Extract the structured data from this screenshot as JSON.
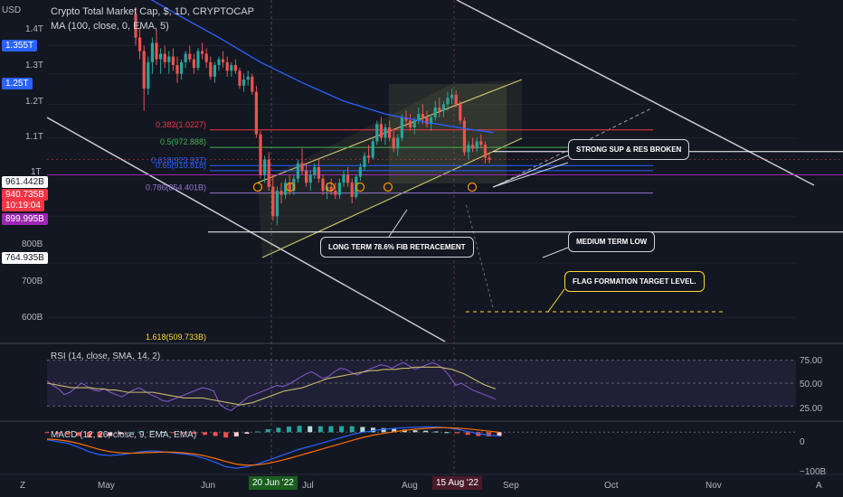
{
  "header": {
    "currency": "USD",
    "title": "Crypto Total Market Cap, $, 1D, CRYPTOCAP",
    "ma_label": "MA (100, close, 0, EMA, 5)"
  },
  "chart_data": {
    "type": "candlestick",
    "title": "Crypto Total Market Cap, $, 1D, CRYPTOCAP",
    "y_axis": {
      "scale": "log",
      "ticks": [
        "1.4T",
        "1.3T",
        "1.2T",
        "1.1T",
        "1T",
        "800B",
        "700B",
        "600B"
      ],
      "ylim": [
        560,
        1480
      ],
      "unit": "B"
    },
    "price_tags": [
      {
        "label": "1.355T",
        "value": 1355,
        "color": "#2962ff"
      },
      {
        "label": "1.25T",
        "value": 1250,
        "color": "#2962ff"
      },
      {
        "label": "961.442B",
        "value": 961.442,
        "color": "#ffffff"
      },
      {
        "label": "940.735B",
        "value": 940.735,
        "color": "#f23645",
        "extra": "10:19:04"
      },
      {
        "label": "899.995B",
        "value": 899.995,
        "color": "#9c27b0"
      },
      {
        "label": "764.935B",
        "value": 764.935,
        "color": "#ffffff"
      }
    ],
    "fib_levels": [
      {
        "label": "0.382(1.0227)",
        "value": 1022.7,
        "color": "#f23645"
      },
      {
        "label": "0.5(972.888)",
        "value": 972.888,
        "color": "#4caf50"
      },
      {
        "label": "0.618(923.937)",
        "value": 923.937,
        "color": "#2962ff"
      },
      {
        "label": "0.65(910.818)",
        "value": 910.818,
        "color": "#2962ff"
      },
      {
        "label": "0.786(854.401B)",
        "value": 854.401,
        "color": "#9575cd"
      },
      {
        "label": "1.618(509.733B)",
        "value": 509.733,
        "color": "#fdd835"
      }
    ],
    "annotations": [
      {
        "text": "STRONG SUP & RES BROKEN"
      },
      {
        "text": "LONG TERM 78.6% FIB RETRACEMENT"
      },
      {
        "text": "MEDIUM TERM LOW"
      },
      {
        "text": "FLAG FORMATION TARGET LEVEL."
      }
    ],
    "x_axis": {
      "months": [
        "May",
        "Jun",
        "Jul",
        "Aug",
        "Sep",
        "Oct",
        "Nov"
      ],
      "highlighted": [
        "20 Jun '22",
        "15 Aug '22"
      ]
    },
    "candles": [
      {
        "o": 1420,
        "h": 1450,
        "l": 1300,
        "c": 1330
      },
      {
        "o": 1330,
        "h": 1370,
        "l": 1250,
        "c": 1280
      },
      {
        "o": 1280,
        "h": 1300,
        "l": 1080,
        "c": 1150
      },
      {
        "o": 1150,
        "h": 1260,
        "l": 1130,
        "c": 1240
      },
      {
        "o": 1240,
        "h": 1330,
        "l": 1200,
        "c": 1310
      },
      {
        "o": 1310,
        "h": 1360,
        "l": 1230,
        "c": 1250
      },
      {
        "o": 1250,
        "h": 1290,
        "l": 1200,
        "c": 1270
      },
      {
        "o": 1270,
        "h": 1300,
        "l": 1220,
        "c": 1240
      },
      {
        "o": 1240,
        "h": 1280,
        "l": 1200,
        "c": 1260
      },
      {
        "o": 1260,
        "h": 1290,
        "l": 1210,
        "c": 1230
      },
      {
        "o": 1230,
        "h": 1260,
        "l": 1170,
        "c": 1200
      },
      {
        "o": 1200,
        "h": 1250,
        "l": 1180,
        "c": 1240
      },
      {
        "o": 1240,
        "h": 1280,
        "l": 1220,
        "c": 1270
      },
      {
        "o": 1270,
        "h": 1300,
        "l": 1240,
        "c": 1250
      },
      {
        "o": 1250,
        "h": 1270,
        "l": 1200,
        "c": 1220
      },
      {
        "o": 1220,
        "h": 1290,
        "l": 1210,
        "c": 1280
      },
      {
        "o": 1280,
        "h": 1310,
        "l": 1250,
        "c": 1270
      },
      {
        "o": 1270,
        "h": 1290,
        "l": 1220,
        "c": 1240
      },
      {
        "o": 1240,
        "h": 1260,
        "l": 1180,
        "c": 1190
      },
      {
        "o": 1190,
        "h": 1240,
        "l": 1170,
        "c": 1230
      },
      {
        "o": 1230,
        "h": 1260,
        "l": 1210,
        "c": 1250
      },
      {
        "o": 1250,
        "h": 1280,
        "l": 1220,
        "c": 1240
      },
      {
        "o": 1240,
        "h": 1260,
        "l": 1190,
        "c": 1210
      },
      {
        "o": 1210,
        "h": 1240,
        "l": 1190,
        "c": 1230
      },
      {
        "o": 1230,
        "h": 1250,
        "l": 1200,
        "c": 1210
      },
      {
        "o": 1210,
        "h": 1220,
        "l": 1150,
        "c": 1160
      },
      {
        "o": 1160,
        "h": 1200,
        "l": 1140,
        "c": 1180
      },
      {
        "o": 1180,
        "h": 1210,
        "l": 1160,
        "c": 1190
      },
      {
        "o": 1190,
        "h": 1200,
        "l": 1130,
        "c": 1140
      },
      {
        "o": 1140,
        "h": 1160,
        "l": 1000,
        "c": 1010
      },
      {
        "o": 1010,
        "h": 1020,
        "l": 890,
        "c": 900
      },
      {
        "o": 900,
        "h": 950,
        "l": 880,
        "c": 940
      },
      {
        "o": 940,
        "h": 960,
        "l": 860,
        "c": 870
      },
      {
        "o": 870,
        "h": 900,
        "l": 790,
        "c": 800
      },
      {
        "o": 800,
        "h": 870,
        "l": 780,
        "c": 860
      },
      {
        "o": 860,
        "h": 880,
        "l": 830,
        "c": 850
      },
      {
        "o": 850,
        "h": 890,
        "l": 840,
        "c": 880
      },
      {
        "o": 880,
        "h": 900,
        "l": 850,
        "c": 860
      },
      {
        "o": 860,
        "h": 900,
        "l": 850,
        "c": 890
      },
      {
        "o": 890,
        "h": 940,
        "l": 880,
        "c": 930
      },
      {
        "o": 930,
        "h": 970,
        "l": 900,
        "c": 910
      },
      {
        "o": 910,
        "h": 930,
        "l": 870,
        "c": 880
      },
      {
        "o": 880,
        "h": 910,
        "l": 860,
        "c": 900
      },
      {
        "o": 900,
        "h": 930,
        "l": 890,
        "c": 920
      },
      {
        "o": 920,
        "h": 940,
        "l": 880,
        "c": 890
      },
      {
        "o": 890,
        "h": 900,
        "l": 850,
        "c": 860
      },
      {
        "o": 860,
        "h": 880,
        "l": 840,
        "c": 870
      },
      {
        "o": 870,
        "h": 890,
        "l": 850,
        "c": 860
      },
      {
        "o": 860,
        "h": 880,
        "l": 840,
        "c": 850
      },
      {
        "o": 850,
        "h": 890,
        "l": 840,
        "c": 880
      },
      {
        "o": 880,
        "h": 910,
        "l": 870,
        "c": 900
      },
      {
        "o": 900,
        "h": 920,
        "l": 870,
        "c": 880
      },
      {
        "o": 880,
        "h": 890,
        "l": 830,
        "c": 845
      },
      {
        "o": 845,
        "h": 900,
        "l": 840,
        "c": 895
      },
      {
        "o": 895,
        "h": 930,
        "l": 885,
        "c": 920
      },
      {
        "o": 920,
        "h": 960,
        "l": 910,
        "c": 950
      },
      {
        "o": 950,
        "h": 980,
        "l": 930,
        "c": 945
      },
      {
        "o": 945,
        "h": 1000,
        "l": 940,
        "c": 990
      },
      {
        "o": 990,
        "h": 1050,
        "l": 980,
        "c": 1040
      },
      {
        "o": 1040,
        "h": 1060,
        "l": 990,
        "c": 1000
      },
      {
        "o": 1000,
        "h": 1040,
        "l": 980,
        "c": 1030
      },
      {
        "o": 1030,
        "h": 1050,
        "l": 990,
        "c": 1000
      },
      {
        "o": 1000,
        "h": 1020,
        "l": 960,
        "c": 970
      },
      {
        "o": 970,
        "h": 1010,
        "l": 950,
        "c": 1000
      },
      {
        "o": 1000,
        "h": 1070,
        "l": 990,
        "c": 1060
      },
      {
        "o": 1060,
        "h": 1080,
        "l": 1030,
        "c": 1050
      },
      {
        "o": 1050,
        "h": 1070,
        "l": 1020,
        "c": 1030
      },
      {
        "o": 1030,
        "h": 1060,
        "l": 1010,
        "c": 1050
      },
      {
        "o": 1050,
        "h": 1090,
        "l": 1040,
        "c": 1070
      },
      {
        "o": 1070,
        "h": 1100,
        "l": 1040,
        "c": 1060
      },
      {
        "o": 1060,
        "h": 1080,
        "l": 1030,
        "c": 1040
      },
      {
        "o": 1040,
        "h": 1070,
        "l": 1020,
        "c": 1060
      },
      {
        "o": 1060,
        "h": 1110,
        "l": 1050,
        "c": 1090
      },
      {
        "o": 1090,
        "h": 1120,
        "l": 1060,
        "c": 1080
      },
      {
        "o": 1080,
        "h": 1110,
        "l": 1060,
        "c": 1100
      },
      {
        "o": 1100,
        "h": 1140,
        "l": 1080,
        "c": 1120
      },
      {
        "o": 1120,
        "h": 1150,
        "l": 1100,
        "c": 1130
      },
      {
        "o": 1130,
        "h": 1145,
        "l": 1090,
        "c": 1100
      },
      {
        "o": 1100,
        "h": 1110,
        "l": 1040,
        "c": 1050
      },
      {
        "o": 1050,
        "h": 1060,
        "l": 950,
        "c": 960
      },
      {
        "o": 960,
        "h": 990,
        "l": 940,
        "c": 980
      },
      {
        "o": 980,
        "h": 1000,
        "l": 960,
        "c": 970
      },
      {
        "o": 970,
        "h": 1000,
        "l": 960,
        "c": 990
      },
      {
        "o": 990,
        "h": 1010,
        "l": 970,
        "c": 980
      },
      {
        "o": 980,
        "h": 990,
        "l": 930,
        "c": 945
      },
      {
        "o": 945,
        "h": 955,
        "l": 930,
        "c": 940
      }
    ],
    "ma_line": [
      {
        "i": 0,
        "v": 1520
      },
      {
        "i": 10,
        "v": 1420
      },
      {
        "i": 20,
        "v": 1330
      },
      {
        "i": 30,
        "v": 1240
      },
      {
        "i": 40,
        "v": 1170
      },
      {
        "i": 50,
        "v": 1110
      },
      {
        "i": 60,
        "v": 1070
      },
      {
        "i": 70,
        "v": 1045
      },
      {
        "i": 80,
        "v": 1025
      },
      {
        "i": 86,
        "v": 1015
      }
    ],
    "rsi": {
      "label": "RSI (14, close, SMA, 14, 2)",
      "ticks": [
        "75.00",
        "50.00",
        "25.00"
      ],
      "ylim": [
        20,
        80
      ],
      "upper": 70,
      "lower": 30,
      "values": [
        52,
        48,
        45,
        40,
        42,
        46,
        50,
        47,
        44,
        43,
        45,
        42,
        40,
        38,
        41,
        44,
        46,
        43,
        40,
        38,
        35,
        34,
        36,
        38,
        40,
        42,
        44,
        46,
        45,
        43,
        32,
        28,
        26,
        30,
        34,
        38,
        40,
        42,
        44,
        46,
        48,
        47,
        49,
        52,
        55,
        58,
        60,
        57,
        54,
        56,
        60,
        63,
        62,
        59,
        57,
        60,
        62,
        64,
        66,
        65,
        63,
        66,
        68,
        65,
        62,
        64,
        66,
        68,
        66,
        62,
        56,
        48,
        50,
        47,
        44,
        42,
        40,
        38,
        36
      ],
      "sma": [
        50,
        49,
        48,
        47,
        46,
        46,
        46,
        46,
        45,
        45,
        44,
        44,
        43,
        42,
        42,
        42,
        42,
        42,
        41,
        40,
        39,
        38,
        37,
        37,
        37,
        37,
        36,
        35,
        34,
        33,
        32,
        31,
        32,
        33,
        35,
        37,
        39,
        41,
        43,
        44,
        45,
        46,
        48,
        50,
        52,
        54,
        55,
        56,
        57,
        58,
        59,
        60,
        61,
        61,
        62,
        62,
        62,
        63,
        63,
        64,
        64,
        64,
        64,
        64,
        63,
        62,
        60,
        58,
        55,
        52,
        49,
        47,
        45
      ]
    },
    "macd": {
      "label": "MACD (12, 26, close, 9, EMA, EMA)",
      "ticks": [
        "0",
        "−100B"
      ],
      "ylim": [
        -110,
        20
      ],
      "macd_line": [
        -20,
        -25,
        -30,
        -40,
        -52,
        -60,
        -62,
        -60,
        -56,
        -52,
        -50,
        -52,
        -55,
        -58,
        -62,
        -70,
        -80,
        -92,
        -96,
        -92,
        -85,
        -75,
        -65,
        -55,
        -45,
        -38,
        -30,
        -22,
        -14,
        -6,
        0,
        4,
        8,
        10,
        12,
        13,
        14,
        14,
        12,
        8,
        2,
        -4,
        -8,
        -10
      ],
      "signal_line": [
        -18,
        -20,
        -24,
        -30,
        -38,
        -46,
        -52,
        -55,
        -56,
        -55,
        -54,
        -53,
        -53,
        -55,
        -58,
        -63,
        -70,
        -78,
        -85,
        -88,
        -87,
        -83,
        -77,
        -70,
        -62,
        -54,
        -46,
        -38,
        -30,
        -22,
        -14,
        -8,
        -3,
        1,
        5,
        8,
        10,
        12,
        12,
        11,
        9,
        6,
        3,
        0
      ],
      "histogram": [
        -2,
        -5,
        -6,
        -10,
        -14,
        -14,
        -10,
        -5,
        0,
        3,
        4,
        1,
        -2,
        -3,
        -4,
        -7,
        -10,
        -14,
        -11,
        -4,
        2,
        8,
        12,
        15,
        17,
        16,
        16,
        16,
        16,
        16,
        14,
        12,
        11,
        9,
        7,
        5,
        4,
        2,
        0,
        -3,
        -7,
        -10,
        -11,
        -10
      ]
    }
  },
  "right_axis": {
    "rsi_ticks": [
      "75.00",
      "50.00",
      "25.00"
    ],
    "macd_ticks": [
      "0",
      "−100B"
    ]
  },
  "time_axis": {
    "months": [
      "May",
      "Jun",
      "Jul",
      "Aug",
      "Sep",
      "Oct",
      "Nov"
    ],
    "highlight_1": "20 Jun '22",
    "highlight_2": "15 Aug '22"
  },
  "colors": {
    "bg": "#131722",
    "up": "#26a69a",
    "down": "#ef5350",
    "ma": "#2962ff",
    "channel": "#c9c26b",
    "rsi": "#7e57c2",
    "rsi_sma": "#c9b96b",
    "macd": "#2962ff",
    "signal": "#ff6d00"
  },
  "icons": {
    "bottom_left": "Z",
    "bottom_right": "A"
  }
}
